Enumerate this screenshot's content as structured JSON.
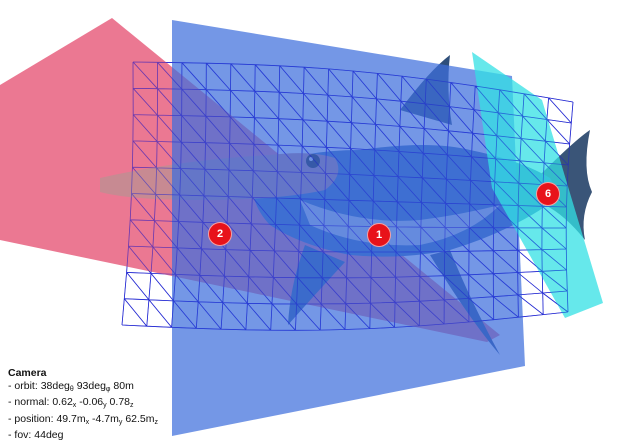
{
  "markers": [
    {
      "id": "1",
      "label": "1",
      "color": "#e8121a"
    },
    {
      "id": "2",
      "label": "2",
      "color": "#e8121a"
    },
    {
      "id": "6",
      "label": "6",
      "color": "#e8121a"
    }
  ],
  "camera": {
    "title": "Camera",
    "orbit": {
      "prefix": "- orbit: ",
      "theta": "38deg",
      "theta_sub": "θ",
      "phi": " 93deg",
      "phi_sub": "φ",
      "dist": " 80m"
    },
    "normal": {
      "prefix": "- normal: ",
      "x": "0.62",
      "x_sub": "x",
      "y": " -0.06",
      "y_sub": "y",
      "z": " 0.78",
      "z_sub": "z"
    },
    "position": {
      "prefix": "- position: ",
      "x": "49.7m",
      "x_sub": "x",
      "y": " -4.7m",
      "y_sub": "y",
      "z": " 62.5m",
      "z_sub": "z"
    },
    "fov": {
      "prefix": "- fov: ",
      "value": "44deg"
    }
  },
  "colors": {
    "pink_plane": "#e8607f",
    "blue_plane": "#3f6fdd",
    "cyan_plane": "#33e0e4",
    "grid": "#1a1fd0",
    "shark_body": "#3d6fb8",
    "shark_belly": "#e9eef2",
    "marker": "#e8121a"
  }
}
